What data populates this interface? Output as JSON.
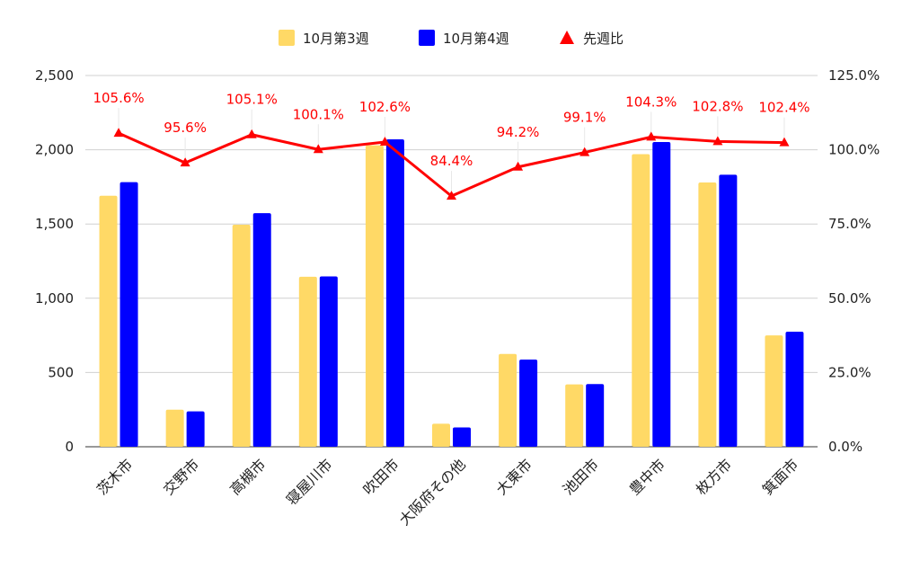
{
  "chart_data": {
    "type": "bar",
    "categories": [
      "茨木市",
      "交野市",
      "高槻市",
      "寝屋川市",
      "吹田市",
      "大阪府その他",
      "大東市",
      "池田市",
      "豊中市",
      "枚方市",
      "箕面市"
    ],
    "series": [
      {
        "name": "10月第3週",
        "type": "bar",
        "axis": "left",
        "color": "#FFD966",
        "values": [
          1690,
          250,
          1495,
          1145,
          2030,
          155,
          625,
          420,
          1970,
          1780,
          750
        ]
      },
      {
        "name": "10月第4週",
        "type": "bar",
        "axis": "left",
        "color": "#0000FF",
        "values": [
          1782,
          238,
          1573,
          1147,
          2070,
          130,
          587,
          422,
          2052,
          1832,
          775
        ]
      },
      {
        "name": "先週比",
        "type": "line",
        "axis": "right",
        "marker": "triangle",
        "color": "#FF0000",
        "values": [
          105.6,
          95.6,
          105.1,
          100.1,
          102.6,
          84.4,
          94.2,
          99.1,
          104.3,
          102.8,
          102.4
        ]
      }
    ],
    "data_labels": [
      "105.6%",
      "95.6%",
      "105.1%",
      "100.1%",
      "102.6%",
      "84.4%",
      "94.2%",
      "99.1%",
      "104.3%",
      "102.8%",
      "102.4%"
    ],
    "ylim_left": [
      0,
      2500
    ],
    "yticks_left": [
      "0",
      "500",
      "1,000",
      "1,500",
      "2,000",
      "2,500"
    ],
    "ylim_right": [
      0,
      125
    ],
    "yticks_right": [
      "0.0%",
      "25.0%",
      "50.0%",
      "75.0%",
      "100.0%",
      "125.0%"
    ],
    "grid": true,
    "legend_position": "top-center",
    "title": "",
    "xlabel": "",
    "ylabel": ""
  }
}
